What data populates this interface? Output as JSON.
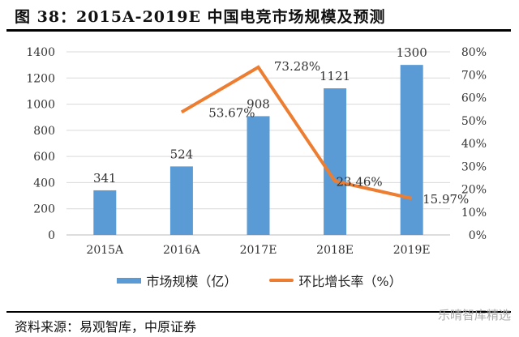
{
  "title": "图 38：2015A-2019E 中国电竞市场规模及预测",
  "source": "资料来源：易观智库，中原证券",
  "watermark": "乐晴智库精选",
  "chart_data": {
    "type": "bar+line",
    "categories": [
      "2015A",
      "2016A",
      "2017E",
      "2018E",
      "2019E"
    ],
    "series": [
      {
        "name": "市场规模（亿）",
        "type": "bar",
        "axis": "left",
        "color": "#5b9bd5",
        "values": [
          341,
          524,
          908,
          1121,
          1300
        ],
        "labels": [
          "341",
          "524",
          "908",
          "1121",
          "1300"
        ]
      },
      {
        "name": "环比增长率（%）",
        "type": "line",
        "axis": "right",
        "color": "#ed7d31",
        "values": [
          null,
          53.67,
          73.28,
          23.46,
          15.97
        ],
        "labels": [
          "",
          "53.67%",
          "73.28%",
          "23.46%",
          "15.97%"
        ]
      }
    ],
    "left_axis": {
      "ylim": [
        0,
        1400
      ],
      "ticks": [
        "0",
        "200",
        "400",
        "600",
        "800",
        "1000",
        "1200",
        "1400"
      ]
    },
    "right_axis": {
      "ylim": [
        0,
        80
      ],
      "ticks": [
        "0%",
        "10%",
        "20%",
        "30%",
        "40%",
        "50%",
        "60%",
        "70%",
        "80%"
      ]
    },
    "grid": true,
    "legend": "bottom"
  }
}
